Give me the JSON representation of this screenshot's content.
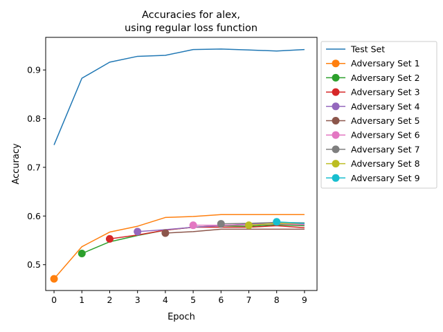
{
  "chart_data": {
    "type": "line",
    "title_lines": [
      "Accuracies for alex,",
      "using regular loss function"
    ],
    "xlabel": "Epoch",
    "ylabel": "Accuracy",
    "xlim": [
      -0.3,
      9.45
    ],
    "ylim": [
      0.447,
      0.967
    ],
    "xticks": [
      0,
      1,
      2,
      3,
      4,
      5,
      6,
      7,
      8,
      9
    ],
    "yticks": [
      0.5,
      0.6,
      0.7,
      0.8,
      0.9
    ],
    "ytick_labels": [
      "0.5",
      "0.6",
      "0.7",
      "0.8",
      "0.9"
    ],
    "legend_position": "outside-right-top",
    "series": [
      {
        "name": "Test Set",
        "color": "#1f77b4",
        "start": 0,
        "marker": false,
        "values": [
          0.746,
          0.883,
          0.916,
          0.928,
          0.93,
          0.942,
          0.943,
          0.941,
          0.939,
          0.942
        ]
      },
      {
        "name": "Adversary Set 1",
        "color": "#ff7f0e",
        "start": 0,
        "marker": true,
        "values": [
          0.471,
          0.537,
          0.567,
          0.579,
          0.597,
          0.599,
          0.603,
          0.603,
          0.603,
          0.603
        ]
      },
      {
        "name": "Adversary Set 2",
        "color": "#2ca02c",
        "start": 1,
        "marker": true,
        "values": [
          0.523,
          0.547,
          0.56,
          0.571,
          0.577,
          0.58,
          0.579,
          0.582,
          0.58
        ]
      },
      {
        "name": "Adversary Set 3",
        "color": "#d62728",
        "start": 2,
        "marker": true,
        "values": [
          0.553,
          0.561,
          0.571,
          0.577,
          0.577,
          0.577,
          0.58,
          0.576
        ]
      },
      {
        "name": "Adversary Set 4",
        "color": "#9467bd",
        "start": 3,
        "marker": true,
        "values": [
          0.568,
          0.572,
          0.577,
          0.58,
          0.584,
          0.584,
          0.583
        ]
      },
      {
        "name": "Adversary Set 5",
        "color": "#8c564b",
        "start": 4,
        "marker": true,
        "values": [
          0.565,
          0.568,
          0.573,
          0.573,
          0.573,
          0.573
        ]
      },
      {
        "name": "Adversary Set 6",
        "color": "#e377c2",
        "start": 5,
        "marker": true,
        "values": [
          0.581,
          0.581,
          0.582,
          0.584,
          0.582
        ]
      },
      {
        "name": "Adversary Set 7",
        "color": "#7f7f7f",
        "start": 6,
        "marker": true,
        "values": [
          0.584,
          0.585,
          0.587,
          0.586
        ]
      },
      {
        "name": "Adversary Set 8",
        "color": "#bcbd22",
        "start": 7,
        "marker": true,
        "values": [
          0.581,
          0.585,
          0.585
        ]
      },
      {
        "name": "Adversary Set 9",
        "color": "#17becf",
        "start": 8,
        "marker": true,
        "values": [
          0.588,
          0.585
        ]
      }
    ]
  }
}
